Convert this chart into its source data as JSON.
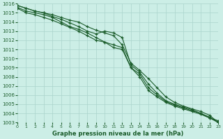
{
  "title": "Graphe pression niveau de la mer (hPa)",
  "bg_color": "#cceee6",
  "grid_color": "#aad4cc",
  "line_color": "#1a5c2a",
  "ylim": [
    1003,
    1016
  ],
  "xlim": [
    0,
    23
  ],
  "yticks": [
    1003,
    1004,
    1005,
    1006,
    1007,
    1008,
    1009,
    1010,
    1011,
    1012,
    1013,
    1014,
    1015,
    1016
  ],
  "xticks": [
    0,
    1,
    2,
    3,
    4,
    5,
    6,
    7,
    8,
    9,
    10,
    11,
    12,
    13,
    14,
    15,
    16,
    17,
    18,
    19,
    20,
    21,
    22,
    23
  ],
  "series": [
    [
      1015.8,
      1015.5,
      1015.2,
      1015.0,
      1014.8,
      1014.5,
      1014.2,
      1014.0,
      1013.5,
      1013.1,
      1012.8,
      1012.5,
      1011.5,
      1009.5,
      1008.7,
      1007.8,
      1006.8,
      1005.8,
      1005.2,
      1004.8,
      1004.5,
      1004.2,
      1003.8,
      1003.0
    ],
    [
      1015.8,
      1015.5,
      1015.2,
      1015.0,
      1014.6,
      1014.3,
      1013.9,
      1013.5,
      1013.0,
      1012.7,
      1013.0,
      1012.8,
      1012.3,
      1009.3,
      1008.5,
      1007.2,
      1006.2,
      1005.4,
      1005.0,
      1004.7,
      1004.4,
      1004.0,
      1003.5,
      1003.2
    ],
    [
      1015.6,
      1015.2,
      1015.0,
      1014.8,
      1014.5,
      1014.0,
      1013.5,
      1013.2,
      1012.8,
      1012.3,
      1011.8,
      1011.2,
      1011.0,
      1009.0,
      1008.3,
      1006.8,
      1006.0,
      1005.3,
      1004.9,
      1004.6,
      1004.3,
      1004.0,
      1003.6,
      1003.0
    ],
    [
      1015.5,
      1015.0,
      1014.8,
      1014.5,
      1014.2,
      1013.8,
      1013.4,
      1013.0,
      1012.5,
      1012.0,
      1011.8,
      1011.5,
      1011.2,
      1009.0,
      1008.0,
      1006.5,
      1005.8,
      1005.2,
      1004.8,
      1004.5,
      1004.2,
      1003.9,
      1003.5,
      1003.0
    ]
  ]
}
